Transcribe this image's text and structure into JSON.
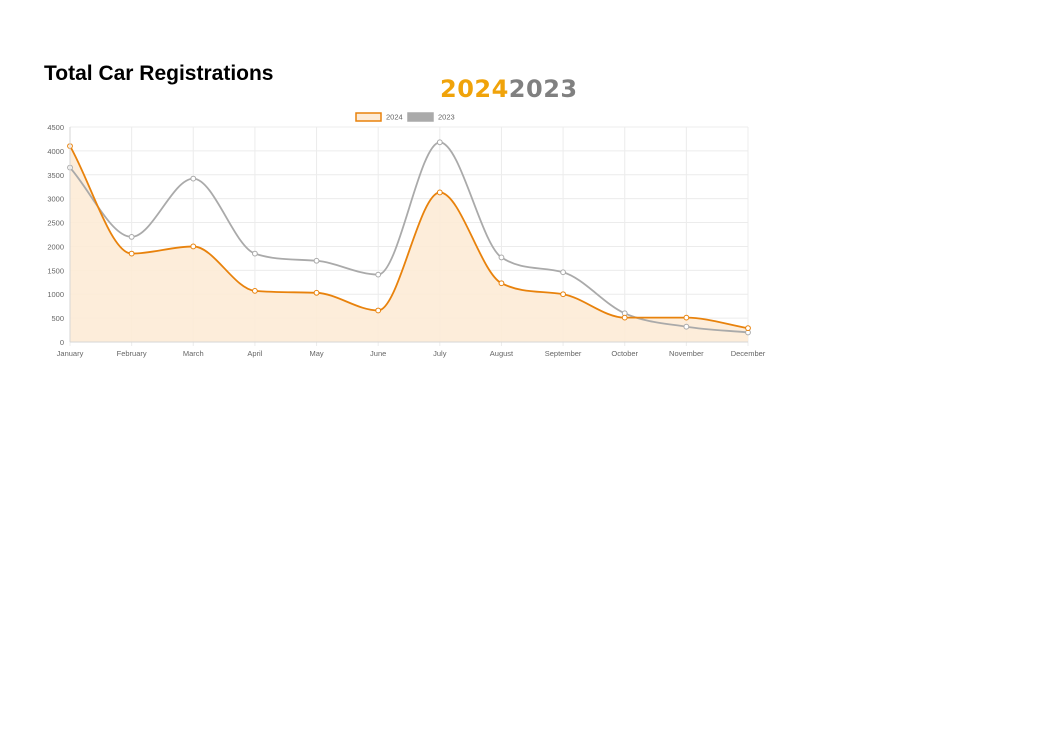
{
  "page": {
    "title": "Total Car Registrations",
    "year_current": "2024",
    "year_previous": "2023"
  },
  "colors": {
    "series_2024": "#e8820c",
    "series_2024_fill": "#fdebd6",
    "series_2023": "#aaaaaa",
    "year_current": "#f0a30a",
    "year_previous": "#808080",
    "grid": "#ececec",
    "tick_text": "#666666"
  },
  "chart_data": {
    "type": "area",
    "categories": [
      "January",
      "February",
      "March",
      "April",
      "May",
      "June",
      "July",
      "August",
      "September",
      "October",
      "November",
      "December"
    ],
    "series": [
      {
        "name": "2024",
        "values": [
          4100,
          1850,
          2000,
          1070,
          1030,
          660,
          3130,
          1230,
          1000,
          510,
          510,
          290
        ],
        "filled": true
      },
      {
        "name": "2023",
        "values": [
          3650,
          2200,
          3420,
          1850,
          1700,
          1410,
          4180,
          1770,
          1460,
          600,
          320,
          200
        ],
        "filled": false
      }
    ],
    "ylim": [
      0,
      4500
    ],
    "yticks": [
      0,
      500,
      1000,
      1500,
      2000,
      2500,
      3000,
      3500,
      4000,
      4500
    ],
    "grid": true,
    "legend_position": "top-center"
  }
}
